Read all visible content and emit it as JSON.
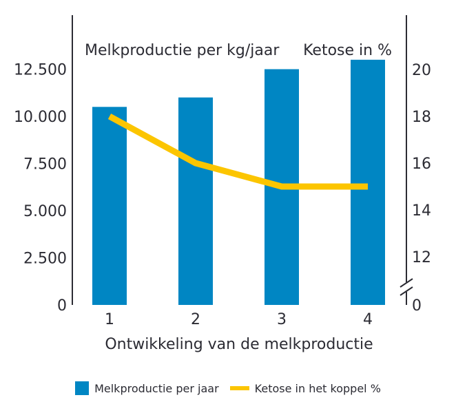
{
  "chart_data": {
    "type": "bar",
    "categories": [
      "1",
      "2",
      "3",
      "4"
    ],
    "series": [
      {
        "name": "Melkproductie per jaar",
        "kind": "bar",
        "axis": "left",
        "color": "#0086c3",
        "values": [
          10500,
          11000,
          12500,
          13000
        ]
      },
      {
        "name": "Ketose in het koppel %",
        "kind": "line",
        "axis": "right",
        "color": "#fcc500",
        "values": [
          18,
          16,
          15,
          15
        ]
      }
    ],
    "xlabel": "Ontwikkeling van de melkproductie",
    "y_left": {
      "label": "Melkproductie per kg/jaar",
      "ticks": [
        0,
        2500,
        5000,
        7500,
        10000,
        12500
      ],
      "tick_labels": [
        "0",
        "2.500",
        "5.000",
        "7.500",
        "10.000",
        "12.500"
      ],
      "ylim": [
        0,
        13000
      ]
    },
    "y_right": {
      "label": "Ketose in %",
      "ticks": [
        0,
        12,
        14,
        16,
        18,
        20
      ],
      "tick_labels": [
        "0",
        "12",
        "14",
        "16",
        "18",
        "20"
      ],
      "axis_break": true,
      "ylim": [
        10,
        20.4
      ]
    },
    "grid": false,
    "legend": "bottom-center"
  },
  "legend": {
    "bars_label": "Melkproductie per jaar",
    "line_label": "Ketose in het koppel %"
  }
}
